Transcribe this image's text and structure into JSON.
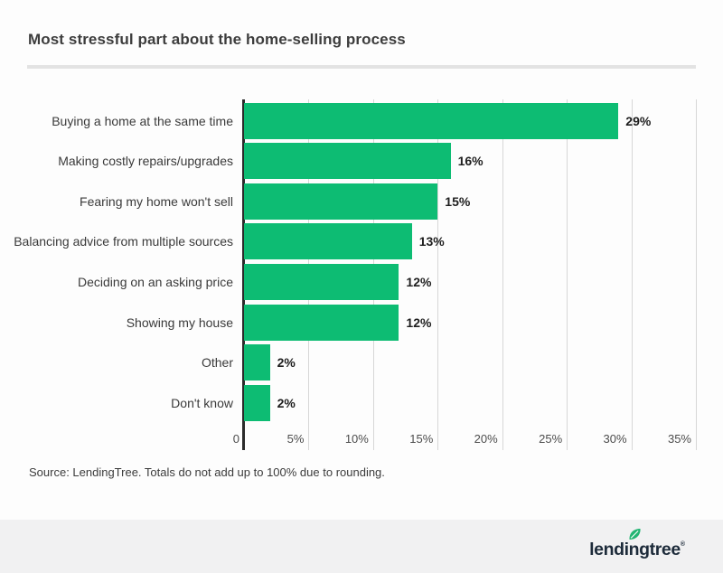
{
  "title": "Most stressful part about the home-selling process",
  "source_note": "Source: LendingTree. Totals do not add up to 100% due to rounding.",
  "footer": {
    "brand": "lendingtree",
    "trademark": "®"
  },
  "colors": {
    "bar": "#0dbc73",
    "axis": "#2b2b2b",
    "grid": "#d7d7d7",
    "divider": "#e3e3e3",
    "footer_bg": "#f1f1f2",
    "logo_navy": "#1d2b3a",
    "leaf_green": "#23b573"
  },
  "chart_data": {
    "type": "bar",
    "orientation": "horizontal",
    "title": "Most stressful part about the home-selling process",
    "categories": [
      "Buying a home at the same time",
      "Making costly repairs/upgrades",
      "Fearing my home won't sell",
      "Balancing advice from multiple sources",
      "Deciding on an asking price",
      "Showing my house",
      "Other",
      "Don't know"
    ],
    "values": [
      29,
      16,
      15,
      13,
      12,
      12,
      2,
      2
    ],
    "value_labels": [
      "29%",
      "16%",
      "15%",
      "13%",
      "12%",
      "12%",
      "2%",
      "2%"
    ],
    "x_tick_values": [
      0,
      5,
      10,
      15,
      20,
      25,
      30,
      35
    ],
    "x_ticks": [
      "0",
      "5%",
      "10%",
      "15%",
      "20%",
      "25%",
      "30%",
      "35%"
    ],
    "xlim": [
      0,
      35
    ],
    "grid": true,
    "legend": false
  }
}
